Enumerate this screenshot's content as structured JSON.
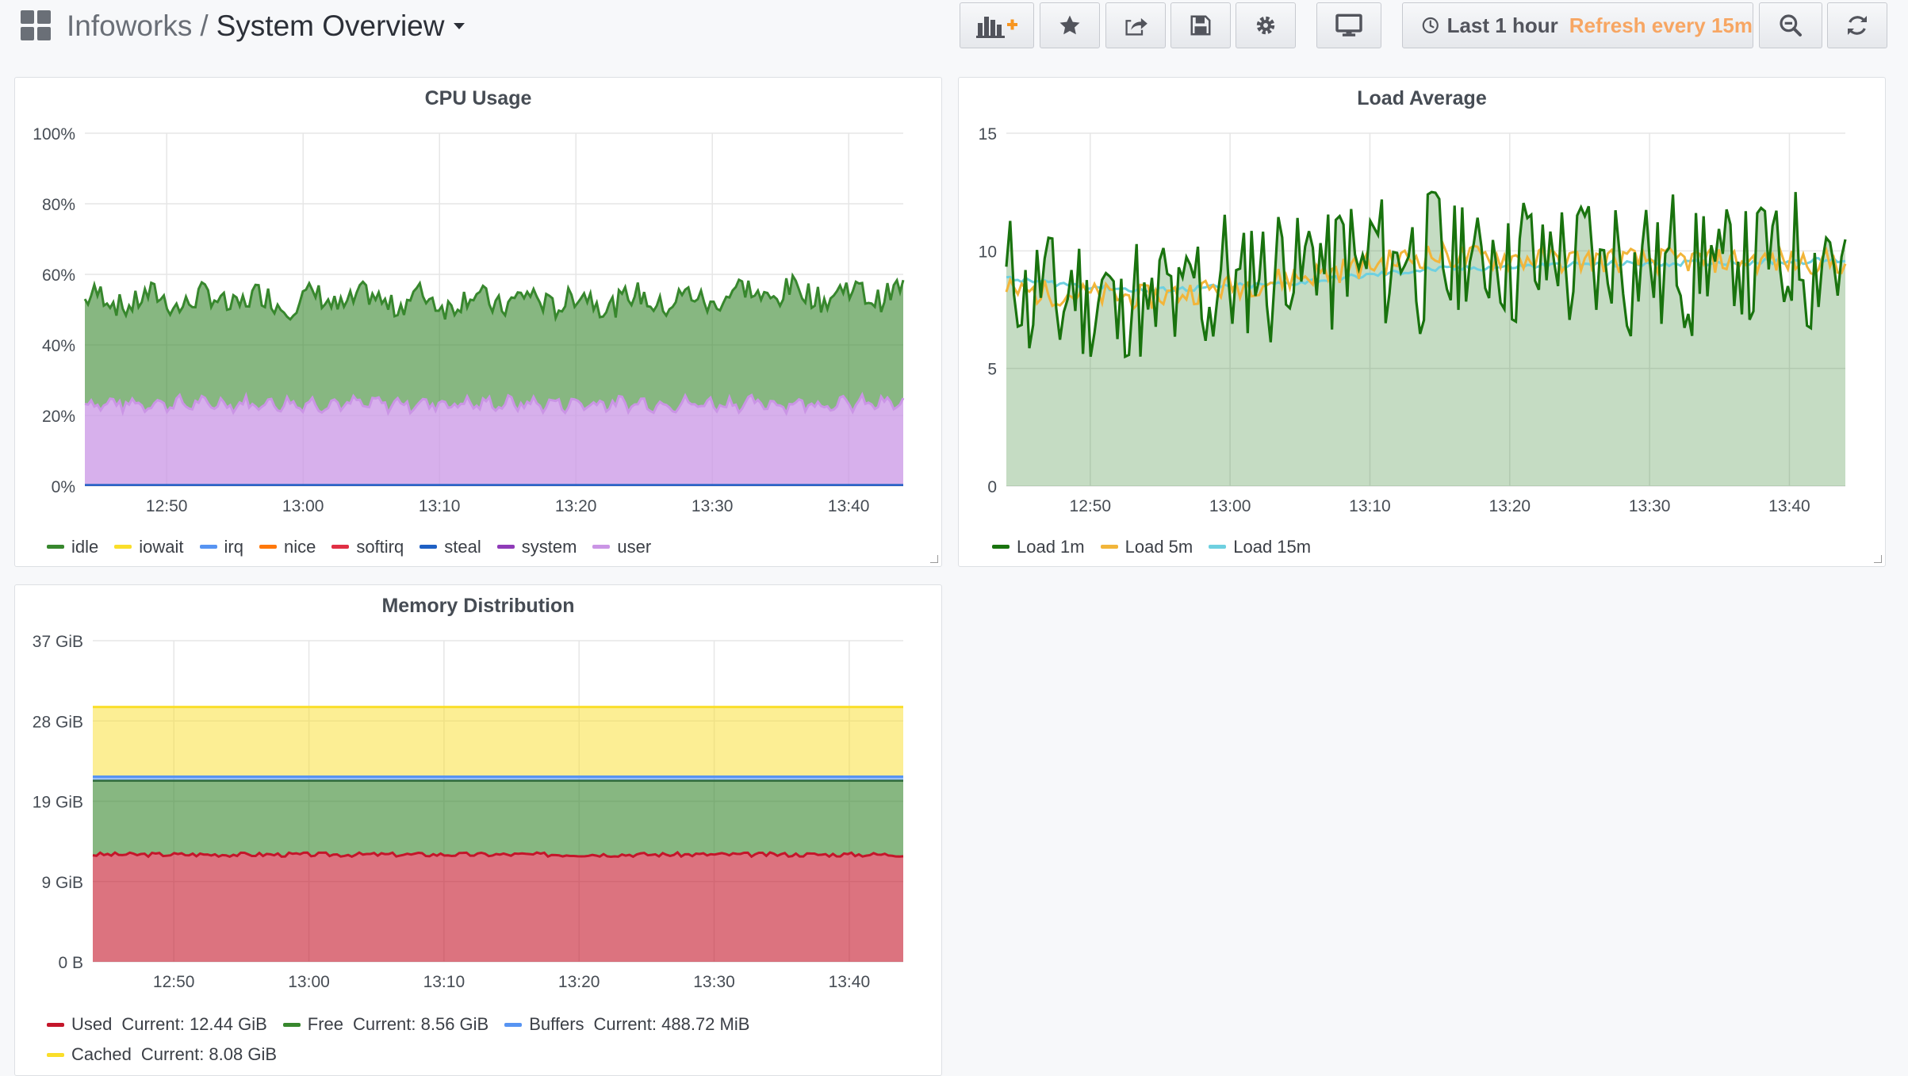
{
  "header": {
    "folder": "Infoworks",
    "separator": "/",
    "title": "System Overview",
    "time_range": "Last 1 hour",
    "refresh": "Refresh every 15m",
    "icons": [
      "dashboard-grid-icon",
      "add-panel-icon",
      "star-icon",
      "share-icon",
      "save-icon",
      "gear-icon",
      "tv-icon",
      "clock-icon",
      "zoom-out-icon",
      "refresh-icon"
    ]
  },
  "colors": {
    "idle": "#37872d",
    "iowait": "#fade2a",
    "irq": "#5794f2",
    "nice": "#ff780a",
    "softirq": "#e02f44",
    "steal": "#1f60c4",
    "system": "#8f3bb8",
    "user": "#ca95e5",
    "load1": "#19730e",
    "load5": "#f2b53a",
    "load15": "#6ed0e0",
    "used": "#c4162a",
    "free": "#37872d",
    "buffers": "#5794f2",
    "cached": "#fade2a",
    "accent_refresh": "#f7a663"
  },
  "cpu": {
    "title": "CPU Usage",
    "legend": [
      "idle",
      "iowait",
      "irq",
      "nice",
      "softirq",
      "steal",
      "system",
      "user"
    ]
  },
  "load": {
    "title": "Load Average",
    "legend": [
      "Load 1m",
      "Load 5m",
      "Load 15m"
    ]
  },
  "memory": {
    "title": "Memory Distribution",
    "legend": [
      {
        "name": "Used",
        "current": "Current: 12.44 GiB"
      },
      {
        "name": "Free",
        "current": "Current: 8.56 GiB"
      },
      {
        "name": "Buffers",
        "current": "Current: 488.72 MiB"
      },
      {
        "name": "Cached",
        "current": "Current: 8.08 GiB"
      }
    ]
  },
  "chart_data": [
    {
      "type": "area",
      "title": "CPU Usage",
      "stacked": true,
      "x_range": [
        "12:44",
        "13:44"
      ],
      "x_ticks": [
        "12:50",
        "13:00",
        "13:10",
        "13:20",
        "13:30",
        "13:40"
      ],
      "y_ticks": [
        "0%",
        "20%",
        "40%",
        "60%",
        "80%",
        "100%"
      ],
      "ylim": [
        0,
        100
      ],
      "series": [
        {
          "name": "system",
          "color": "#8f3bb8",
          "approx_value": 0.3
        },
        {
          "name": "user",
          "color": "#ca95e5",
          "approx_value": 23
        },
        {
          "name": "iowait",
          "color": "#fade2a",
          "approx_value": 0
        },
        {
          "name": "irq",
          "color": "#5794f2",
          "approx_value": 0
        },
        {
          "name": "nice",
          "color": "#ff780a",
          "approx_value": 0
        },
        {
          "name": "softirq",
          "color": "#e02f44",
          "approx_value": 0
        },
        {
          "name": "steal",
          "color": "#1f60c4",
          "approx_value": 0
        },
        {
          "name": "idle",
          "color": "#37872d",
          "approx_value": 30
        }
      ],
      "stack_top_range": [
        49,
        60
      ],
      "legend_position": "bottom"
    },
    {
      "type": "line",
      "title": "Load Average",
      "x_range": [
        "12:44",
        "13:44"
      ],
      "x_ticks": [
        "12:50",
        "13:00",
        "13:10",
        "13:20",
        "13:30",
        "13:40"
      ],
      "y_ticks": [
        "0",
        "5",
        "10",
        "15"
      ],
      "ylim": [
        0,
        15
      ],
      "series": [
        {
          "name": "Load 1m",
          "color": "#19730e",
          "fill": true,
          "x": [
            "12:44",
            "12:54",
            "13:04",
            "13:14",
            "13:24",
            "13:34",
            "13:44"
          ],
          "values": [
            8.5,
            7.5,
            9.5,
            9.8,
            9.6,
            9.4,
            9.8
          ],
          "range": [
            5.5,
            12.5
          ]
        },
        {
          "name": "Load 5m",
          "color": "#f2b53a",
          "x": [
            "12:44",
            "12:54",
            "13:04",
            "13:14",
            "13:24",
            "13:34",
            "13:44"
          ],
          "values": [
            8.3,
            8.0,
            8.8,
            9.8,
            9.6,
            9.6,
            9.5
          ]
        },
        {
          "name": "Load 15m",
          "color": "#6ed0e0",
          "x": [
            "12:44",
            "12:54",
            "13:04",
            "13:14",
            "13:24",
            "13:34",
            "13:44"
          ],
          "values": [
            8.8,
            8.3,
            8.6,
            9.2,
            9.4,
            9.5,
            9.6
          ]
        }
      ],
      "legend_position": "bottom"
    },
    {
      "type": "area",
      "title": "Memory Distribution",
      "stacked": true,
      "x_range": [
        "12:44",
        "13:44"
      ],
      "x_ticks": [
        "12:50",
        "13:00",
        "13:10",
        "13:20",
        "13:30",
        "13:40"
      ],
      "y_ticks": [
        "0 B",
        "9 GiB",
        "19 GiB",
        "28 GiB",
        "37 GiB"
      ],
      "ylim": [
        0,
        37.25
      ],
      "unit": "GiB",
      "series": [
        {
          "name": "Used",
          "color": "#c4162a",
          "approx_value": 12.44
        },
        {
          "name": "Free",
          "color": "#37872d",
          "approx_value": 8.56
        },
        {
          "name": "Buffers",
          "color": "#5794f2",
          "approx_value": 0.48
        },
        {
          "name": "Cached",
          "color": "#fade2a",
          "approx_value": 8.08
        }
      ],
      "legend_position": "bottom"
    }
  ]
}
